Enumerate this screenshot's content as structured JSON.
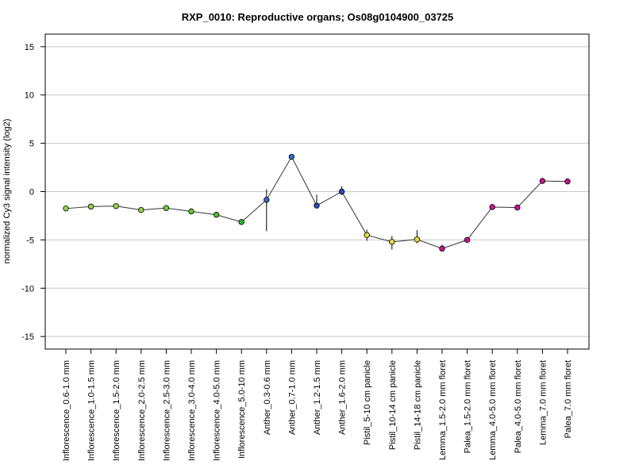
{
  "chart_data": {
    "type": "line",
    "title": "RXP_0010: Reproductive organs; Os08g0104900_03725",
    "xlabel": "",
    "ylabel": "normalized Cy3 signal intensity (log2)",
    "ylim": [
      -16.3,
      16.3
    ],
    "yticks": [
      -15,
      -10,
      -5,
      0,
      5,
      10,
      15
    ],
    "grid": true,
    "legend": "none",
    "categories": [
      "Inflorescence_0.6-1.0 mm",
      "Inflorescence_1.0-1.5 mm",
      "Inflorescence_1.5-2.0 mm",
      "Inflorescence_2.0-2.5 mm",
      "Inflorescence_2.5-3.0 mm",
      "Inflorescence_3.0-4.0 mm",
      "Inflorescence_4.0-5.0 mm",
      "Inflorescence_5.0-10 mm",
      "Anther_0.3-0.6 mm",
      "Anther_0.7-1.0 mm",
      "Anther_1.2-1.5 mm",
      "Anther_1.6-2.0 mm",
      "Pistil_5-10 cm panicle",
      "Pistil_10-14 cm panicle",
      "Pistil_14-18 cm panicle",
      "Lemma_1.5-2.0 mm floret",
      "Palea_1.5-2.0 mm floret",
      "Lemma_4.0-5.0 mm floret",
      "Palea_4.0-5.0 mm floret",
      "Lemma_7.0 mm floret",
      "Palea_7.0 mm floret"
    ],
    "series": [
      {
        "values": [
          -1.75,
          -1.55,
          -1.5,
          -1.9,
          -1.7,
          -2.05,
          -2.4,
          -3.15,
          -0.85,
          3.6,
          -1.45,
          0.0,
          -4.5,
          -5.2,
          -4.95,
          -5.9,
          -5.0,
          -1.6,
          -1.65,
          1.1,
          1.05
        ],
        "err_low": [
          -1.9,
          -1.75,
          -1.75,
          -2.05,
          -1.95,
          -2.2,
          -2.55,
          -3.4,
          -4.1,
          3.45,
          -1.6,
          -0.35,
          -5.1,
          -6.0,
          -5.35,
          -6.05,
          -5.15,
          -1.75,
          -1.8,
          0.95,
          0.9
        ],
        "err_high": [
          -1.6,
          -1.35,
          -1.3,
          -1.75,
          -1.45,
          -1.9,
          -2.25,
          -2.9,
          0.25,
          3.75,
          -0.3,
          0.55,
          -3.95,
          -4.6,
          -4.0,
          -5.5,
          -4.85,
          -1.45,
          -1.5,
          1.25,
          1.2
        ],
        "colors": [
          "#8fd64a",
          "#8fd64a",
          "#8fd64a",
          "#8fd64a",
          "#6fcf3a",
          "#5fcb2e",
          "#46c42a",
          "#2cba2a",
          "#2e6cc9",
          "#2e6cc9",
          "#2a4fb8",
          "#2a4fb8",
          "#e5d93a",
          "#e5d93a",
          "#e5d93a",
          "#c8158f",
          "#c8158f",
          "#c8158f",
          "#c8158f",
          "#c8158f",
          "#c8158f"
        ]
      }
    ]
  }
}
